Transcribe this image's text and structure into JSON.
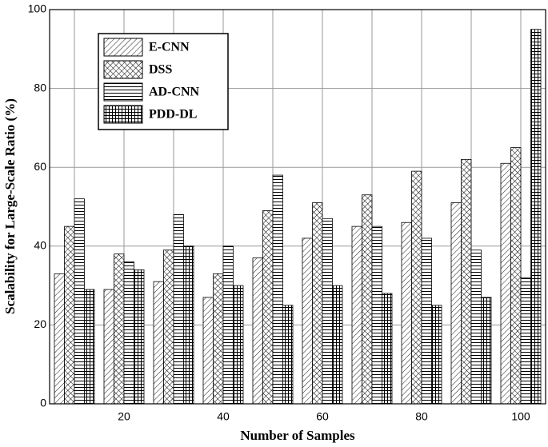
{
  "chart_data": {
    "type": "bar",
    "x_label": "Number of Samples",
    "y_label": "Scalability for Large-Scale Ratio (%)",
    "categories": [
      null,
      "20",
      null,
      "40",
      null,
      "60",
      null,
      "80",
      null,
      "100"
    ],
    "series": [
      {
        "name": "E-CNN",
        "color": "#000000",
        "hatch": "diagonal",
        "values": [
          33,
          29,
          31,
          27,
          37,
          42,
          45,
          46,
          51,
          61
        ]
      },
      {
        "name": "DSS",
        "color": "#000000",
        "hatch": "cross",
        "values": [
          45,
          38,
          39,
          33,
          49,
          51,
          53,
          59,
          62,
          65
        ]
      },
      {
        "name": "AD-CNN",
        "color": "#000000",
        "hatch": "horizontal",
        "values": [
          52,
          36,
          48,
          40,
          58,
          47,
          45,
          42,
          39,
          32
        ]
      },
      {
        "name": "PDD-DL",
        "color": "#000000",
        "hatch": "grid",
        "values": [
          29,
          34,
          40,
          30,
          25,
          30,
          28,
          25,
          27,
          95
        ]
      }
    ],
    "ylim": [
      0,
      100
    ],
    "yticks": [
      0,
      20,
      40,
      60,
      80,
      100
    ],
    "grid": true,
    "legend": "upper left"
  }
}
